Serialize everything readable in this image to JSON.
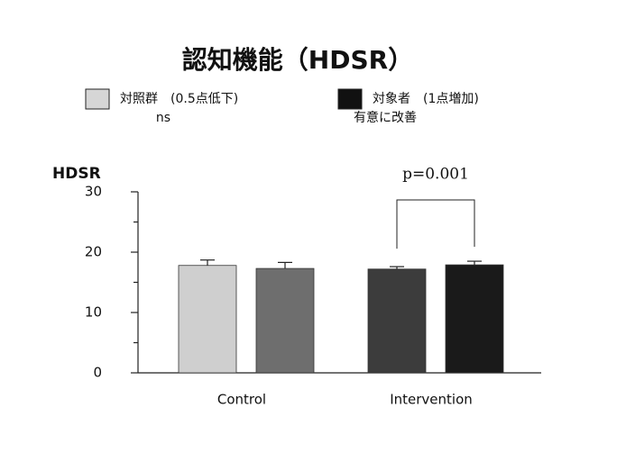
{
  "chart_data": {
    "type": "bar",
    "title": "認知機能（HDSR）",
    "y_label": "HDSR",
    "categories": [
      "Control",
      "Intervention"
    ],
    "series": [
      {
        "colors": [
          "#cfcfcf",
          "#3c3c3c"
        ],
        "values": [
          17.8,
          17.2
        ],
        "errors": [
          0.9,
          0.4
        ]
      },
      {
        "colors": [
          "#6e6e6e",
          "#1a1a1a"
        ],
        "values": [
          17.3,
          17.9
        ],
        "errors": [
          1.0,
          0.6
        ]
      }
    ],
    "legend": [
      {
        "label": "対照群　(0.5点低下)",
        "note": "ns",
        "color": "#d6d6d6"
      },
      {
        "label": "対象者　(1点増加)",
        "note": "有意に改善",
        "color": "#111111"
      }
    ],
    "annotation": "p=0.001",
    "ylim": [
      0,
      30
    ],
    "yticks": [
      0,
      10,
      20,
      30
    ],
    "minor_yticks": [
      5,
      15,
      25
    ]
  }
}
